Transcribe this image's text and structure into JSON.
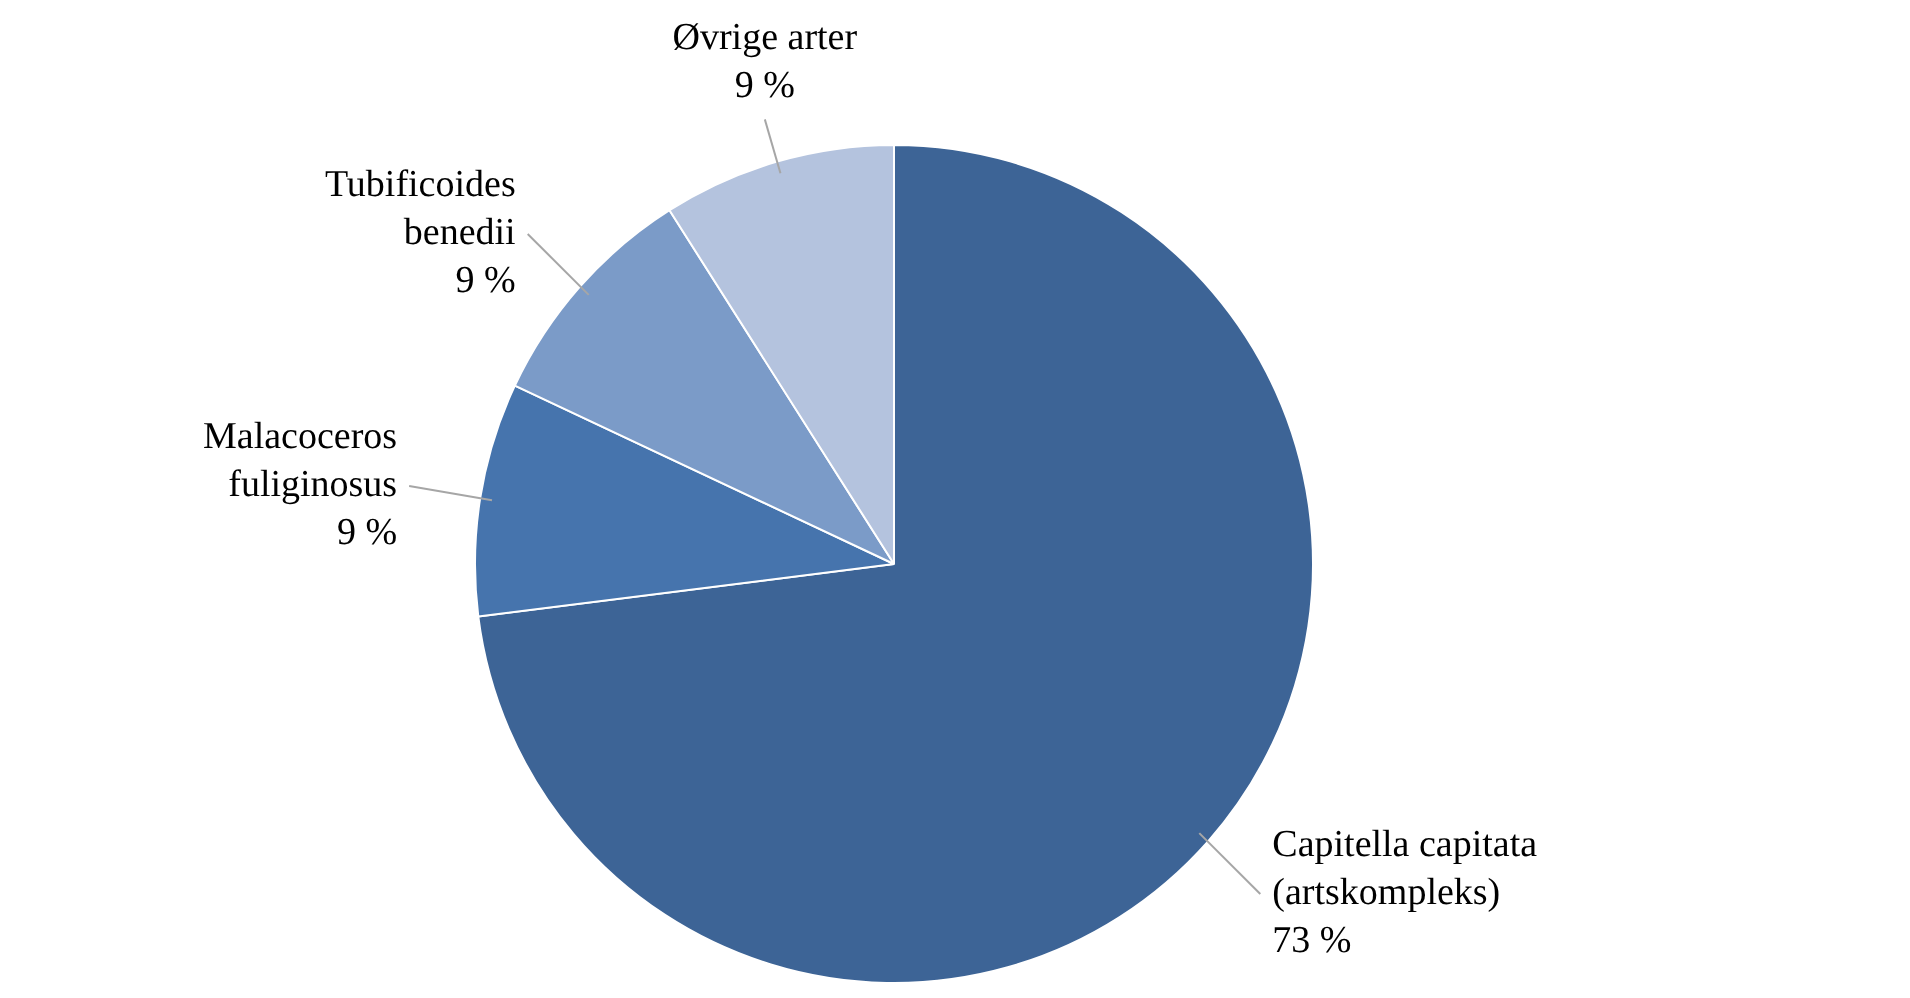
{
  "chart_data": {
    "type": "pie",
    "categories": [
      "Capitella capitata (artskompleks)",
      "Malacoceros fuliginosus",
      "Tubificoides benedii",
      "Øvrige arter"
    ],
    "values": [
      73,
      9,
      9,
      9
    ],
    "colors": [
      "#3d6496",
      "#4674ad",
      "#7b9bc8",
      "#b4c3de"
    ],
    "value_labels": [
      "73 %",
      "9 %",
      "9 %",
      "9 %"
    ],
    "legend": false
  }
}
